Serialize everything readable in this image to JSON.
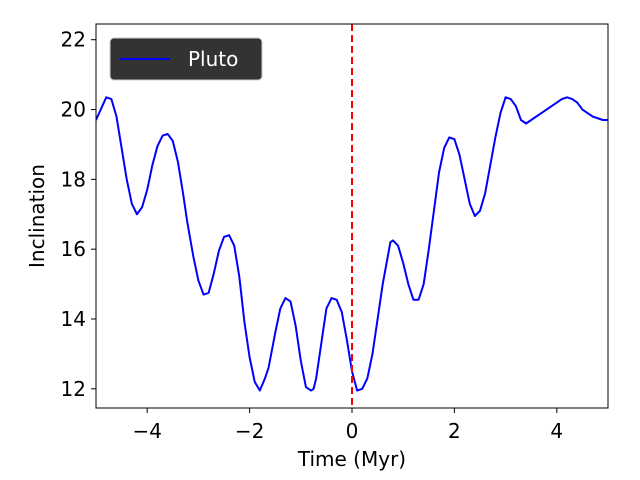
{
  "chart_data": {
    "type": "line",
    "title": "",
    "xlabel": "Time (Myr)",
    "ylabel": "Inclination",
    "xlim": [
      -5,
      5
    ],
    "ylim": [
      11.45,
      22.45
    ],
    "xticks": [
      -4,
      -2,
      0,
      2,
      4
    ],
    "yticks": [
      12,
      14,
      16,
      18,
      20,
      22
    ],
    "grid": false,
    "legend": {
      "placement": "top-left",
      "background": "#333333",
      "entries": [
        "Pluto"
      ]
    },
    "series": [
      {
        "name": "Pluto",
        "color": "#0000ff",
        "x": [
          -5.0,
          -4.8,
          -4.7,
          -4.6,
          -4.5,
          -4.4,
          -4.3,
          -4.2,
          -4.1,
          -4.0,
          -3.9,
          -3.8,
          -3.7,
          -3.6,
          -3.5,
          -3.4,
          -3.3,
          -3.22,
          -3.1,
          -3.0,
          -2.9,
          -2.8,
          -2.7,
          -2.6,
          -2.5,
          -2.4,
          -2.3,
          -2.2,
          -2.1,
          -2.0,
          -1.9,
          -1.8,
          -1.7,
          -1.63,
          -1.5,
          -1.4,
          -1.3,
          -1.2,
          -1.1,
          -1.0,
          -0.9,
          -0.8,
          -0.75,
          -0.7,
          -0.6,
          -0.5,
          -0.4,
          -0.3,
          -0.2,
          -0.1,
          0.0,
          0.1,
          0.2,
          0.3,
          0.4,
          0.5,
          0.6,
          0.7,
          0.75,
          0.8,
          0.9,
          1.0,
          1.1,
          1.2,
          1.3,
          1.4,
          1.5,
          1.6,
          1.7,
          1.8,
          1.9,
          2.0,
          2.1,
          2.2,
          2.3,
          2.4,
          2.5,
          2.6,
          2.7,
          2.8,
          2.9,
          3.0,
          3.1,
          3.2,
          3.3,
          3.4,
          3.5,
          3.6,
          3.7,
          3.8,
          3.9,
          4.0,
          4.1,
          4.2,
          4.3,
          4.4,
          4.5,
          4.6,
          4.7,
          4.8,
          4.9,
          5.0
        ],
        "y": [
          19.7,
          20.35,
          20.3,
          19.8,
          18.9,
          18.0,
          17.3,
          17.0,
          17.2,
          17.7,
          18.4,
          18.95,
          19.25,
          19.3,
          19.1,
          18.5,
          17.6,
          16.8,
          15.8,
          15.1,
          14.7,
          14.75,
          15.3,
          15.95,
          16.35,
          16.4,
          16.1,
          15.2,
          13.9,
          12.9,
          12.2,
          11.95,
          12.3,
          12.6,
          13.6,
          14.3,
          14.6,
          14.5,
          13.8,
          12.8,
          12.05,
          11.95,
          12.0,
          12.3,
          13.3,
          14.3,
          14.6,
          14.55,
          14.2,
          13.4,
          12.5,
          11.95,
          12.0,
          12.3,
          13.0,
          14.0,
          15.0,
          15.8,
          16.2,
          16.25,
          16.1,
          15.6,
          15.0,
          14.55,
          14.55,
          15.0,
          16.0,
          17.1,
          18.2,
          18.9,
          19.2,
          19.15,
          18.7,
          18.0,
          17.3,
          16.95,
          17.1,
          17.6,
          18.4,
          19.2,
          19.9,
          20.35,
          20.3,
          20.1,
          19.7,
          19.6,
          19.7,
          19.8,
          19.9,
          20.0,
          20.1,
          20.2,
          20.3,
          20.35,
          20.3,
          20.2,
          20.0,
          19.9,
          19.8,
          19.75,
          19.7,
          19.7
        ],
        "note_unused": false
      }
    ],
    "reference_lines": [
      {
        "orientation": "vertical",
        "x": 0,
        "color": "#ff0000",
        "style": "dashed"
      }
    ]
  }
}
